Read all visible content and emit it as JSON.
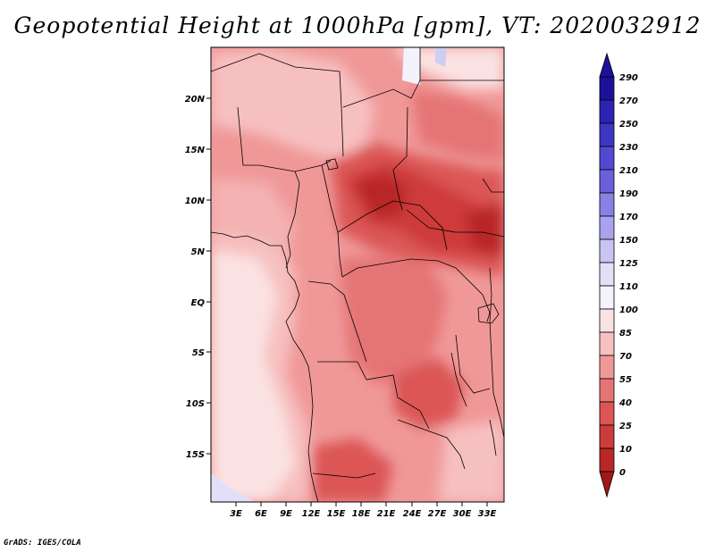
{
  "title": "Geopotential Height at 1000hPa [gpm], VT: 2020032912",
  "credit": "GrADS: IGES/COLA",
  "colors": {
    "c290": "#1c129a",
    "c270": "#2c24b0",
    "c250": "#3e36c2",
    "c230": "#5249d2",
    "c210": "#6a60dc",
    "c190": "#8a80e6",
    "c170": "#aaa2ee",
    "c150": "#c8c4f4",
    "c125": "#e2e0f8",
    "c110": "#f4f2fc",
    "c100": "#fbe2e2",
    "c85": "#f7c0c0",
    "c70": "#f09898",
    "c55": "#e57575",
    "c40": "#dc5656",
    "c25": "#cd3b3b",
    "c10": "#b82828",
    "c0": "#a11818",
    "land_boundary": "#000000"
  },
  "map": {
    "y_labels": [
      "20N",
      "15N",
      "10N",
      "5N",
      "EQ",
      "5S",
      "10S",
      "15S"
    ],
    "x_labels": [
      "3E",
      "6E",
      "9E",
      "12E",
      "15E",
      "18E",
      "21E",
      "24E",
      "27E",
      "30E",
      "33E"
    ]
  },
  "colorbar": {
    "labels": [
      "290",
      "270",
      "250",
      "230",
      "210",
      "190",
      "170",
      "150",
      "125",
      "110",
      "100",
      "85",
      "70",
      "55",
      "40",
      "25",
      "10",
      "0"
    ]
  }
}
